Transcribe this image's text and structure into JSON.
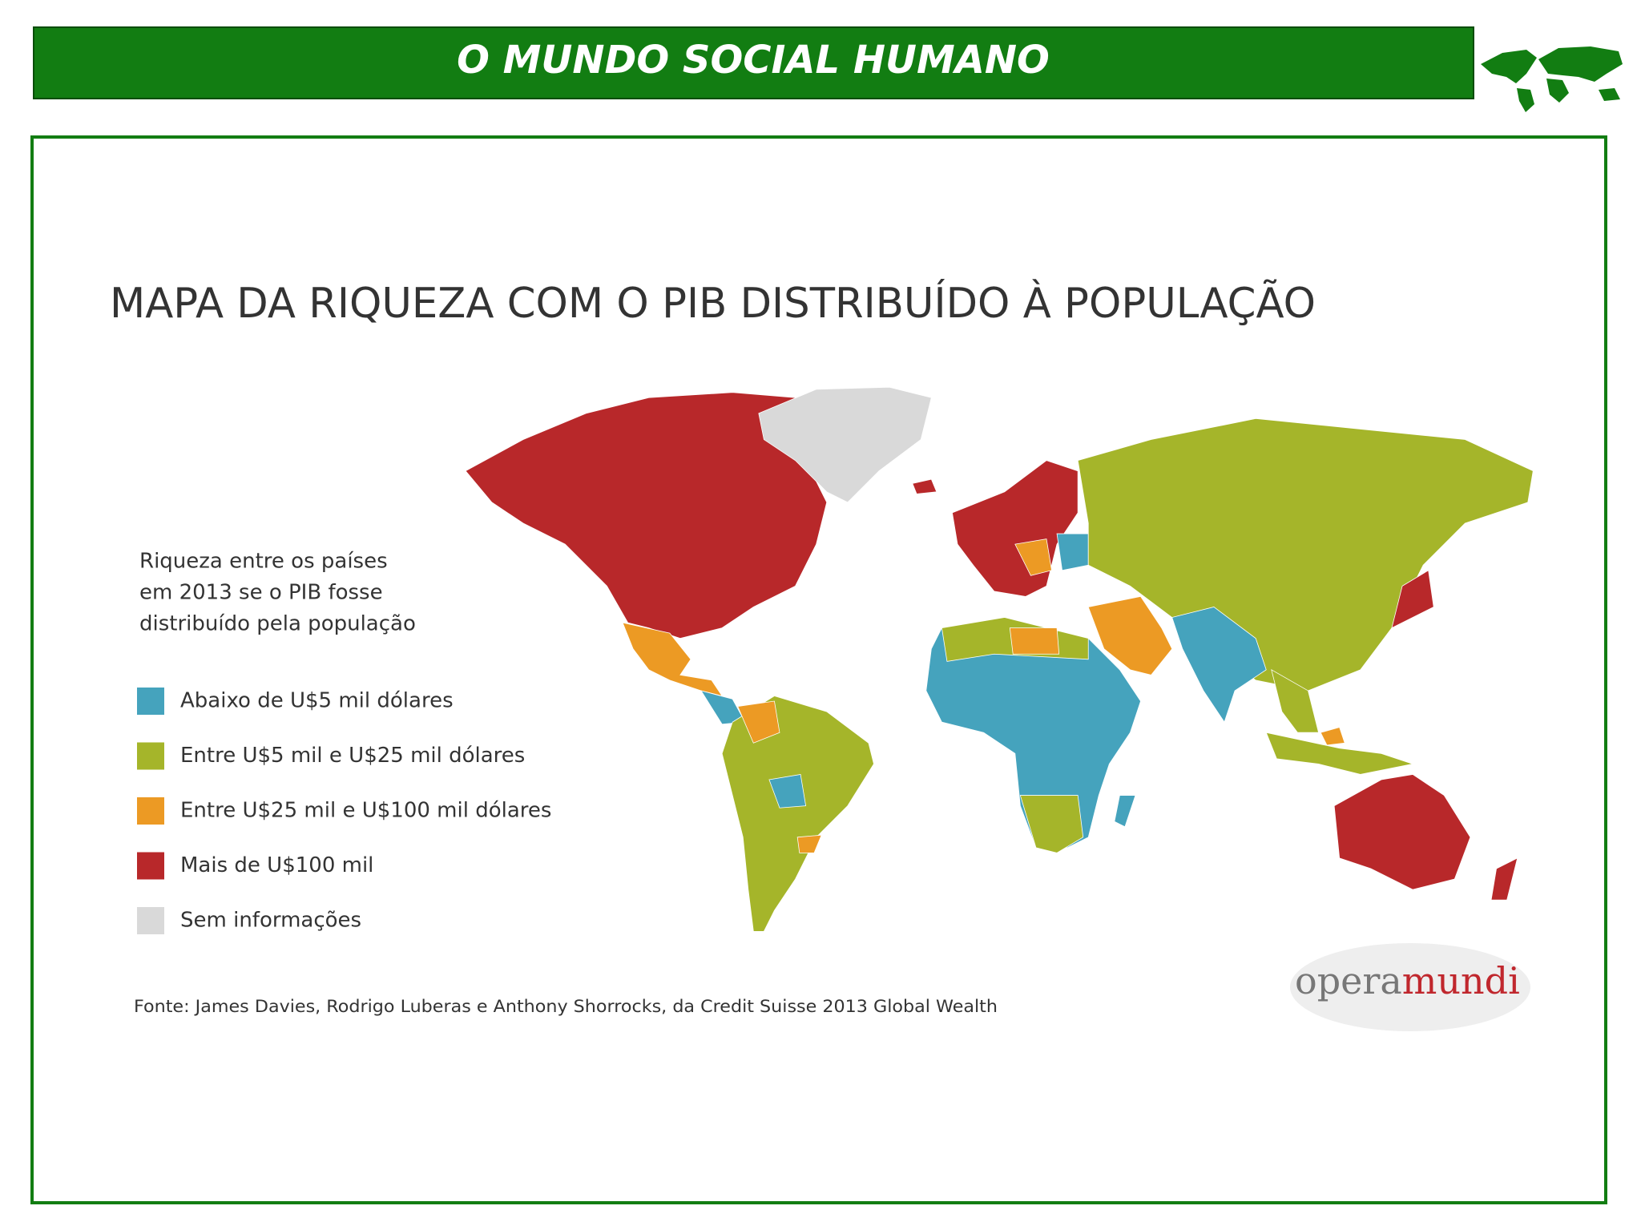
{
  "header": {
    "title": "O MUNDO SOCIAL HUMANO"
  },
  "map": {
    "title": "MAPA DA RIQUEZA COM O PIB DISTRIBUÍDO À POPULAÇÃO",
    "legend": {
      "heading": [
        "Riqueza entre os países",
        "em 2013 se o PIB fosse",
        "distribuído pela população"
      ],
      "items": [
        {
          "label": "Abaixo de U$5 mil dólares",
          "color": "#45a3bd"
        },
        {
          "label": "Entre U$5 mil e U$25 mil dólares",
          "color": "#a5b52a"
        },
        {
          "label": "Entre U$25 mil e U$100 mil dólares",
          "color": "#ec9a24"
        },
        {
          "label": "Mais de U$100 mil",
          "color": "#b8282a"
        },
        {
          "label": "Sem informações",
          "color": "#d9d9d9"
        }
      ]
    },
    "source": "Fonte: James Davies, Rodrigo Luberas e Anthony Shorrocks, da Credit Suisse 2013 Global Wealth",
    "logo": {
      "first": "opera",
      "second": "mundi"
    }
  }
}
